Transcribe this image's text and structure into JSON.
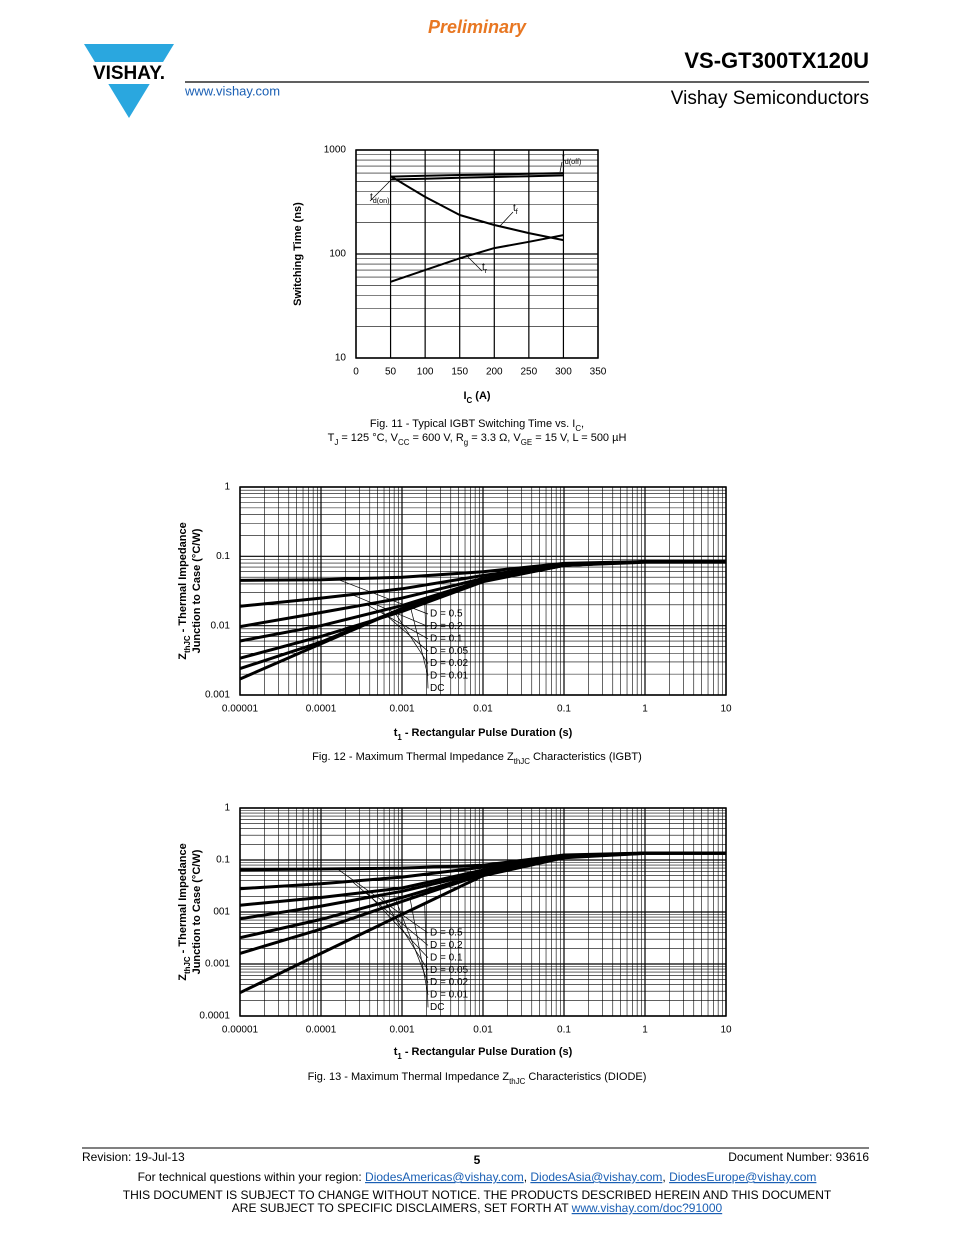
{
  "header": {
    "preliminary": "Preliminary",
    "logo": "VISHAY.",
    "title": "VS-GT300TX120U",
    "company": "Vishay Semiconductors",
    "url": "www.vishay.com"
  },
  "chart_data": [
    {
      "type": "line",
      "x_label": [
        "I",
        "C",
        " (A)"
      ],
      "y_label": [
        [
          "Switching Time (ns)"
        ]
      ],
      "caption": [
        [
          "Fig. 11 - Typical IGBT Switching Time vs. I",
          "C",
          ","
        ],
        [
          "T",
          "J",
          " = 125 °C, V",
          "CC",
          " = 600 V, R",
          "g",
          " = 3.3 Ω, V",
          "GE",
          " = 15 V, L = 500 µH"
        ]
      ],
      "x": [
        50,
        100,
        150,
        200,
        250,
        300
      ],
      "xlim": [
        0,
        350
      ],
      "xticks": [
        0,
        50,
        100,
        150,
        200,
        250,
        300,
        350
      ],
      "xscale": "linear",
      "ylim": [
        10,
        1000
      ],
      "yticks": [
        10,
        100,
        1000
      ],
      "yscale": "log",
      "grid": true,
      "series": [
        {
          "name": [
            "t",
            "d(off)"
          ],
          "color": "#000000",
          "values": [
            555,
            565,
            575,
            580,
            590,
            600
          ]
        },
        {
          "name": [
            "t",
            "d(on)"
          ],
          "color": "#000000",
          "values": [
            520,
            530,
            540,
            550,
            560,
            570
          ]
        },
        {
          "name": [
            "t",
            "f"
          ],
          "color": "#000000",
          "values": [
            560,
            354,
            237,
            190,
            159,
            136
          ]
        },
        {
          "name": [
            "t",
            "r"
          ],
          "color": "#000000",
          "values": [
            54,
            70,
            91,
            114,
            131,
            152
          ]
        }
      ]
    },
    {
      "type": "line",
      "x_label": [
        "t",
        "1",
        " - Rectangular Pulse Duration (s)"
      ],
      "y_label": [
        [
          "Z",
          "thJC",
          " - Thermal Impedance"
        ],
        [
          "Junction to Case (°C/W)"
        ]
      ],
      "caption": [
        [
          "Fig. 12 - Maximum Thermal Impedance Z",
          "thJC",
          " Characteristics (IGBT)"
        ]
      ],
      "x": [
        1e-05,
        0.0001,
        0.001,
        0.01,
        0.1,
        1,
        10
      ],
      "xlim": [
        1e-05,
        10
      ],
      "xticks": [
        {
          "value": 1e-05,
          "label": "0.00001"
        },
        0.0001,
        0.001,
        0.01,
        0.1,
        1,
        10
      ],
      "xscale": "log",
      "ylim": [
        0.001,
        1
      ],
      "yticks": [
        0.001,
        0.01,
        0.1,
        1
      ],
      "yscale": "log",
      "grid": true,
      "series": [
        {
          "name": "D = 0.5",
          "color": "#000000",
          "values": [
            0.045,
            0.046,
            0.05,
            0.06,
            0.079,
            0.084,
            0.084
          ]
        },
        {
          "name": "D = 0.2",
          "color": "#000000",
          "values": [
            0.019,
            0.025,
            0.034,
            0.053,
            0.077,
            0.084,
            0.084
          ]
        },
        {
          "name": "D = 0.1",
          "color": "#000000",
          "values": [
            0.0097,
            0.0155,
            0.025,
            0.048,
            0.074,
            0.084,
            0.084
          ]
        },
        {
          "name": "D = 0.05",
          "color": "#000000",
          "values": [
            0.006,
            0.01,
            0.0195,
            0.045,
            0.074,
            0.084,
            0.084
          ]
        },
        {
          "name": "D = 0.02",
          "color": "#000000",
          "values": [
            0.0034,
            0.007,
            0.016,
            0.043,
            0.074,
            0.084,
            0.084
          ]
        },
        {
          "name": "D = 0.01",
          "color": "#000000",
          "values": [
            0.0024,
            0.0058,
            0.0177,
            0.044,
            0.074,
            0.084,
            0.084
          ]
        },
        {
          "name": "DC",
          "color": "#000000",
          "values": [
            0.0017,
            0.0055,
            0.0175,
            0.045,
            0.074,
            0.082,
            0.082
          ]
        }
      ]
    },
    {
      "type": "line",
      "x_label": [
        "t",
        "1",
        " - Rectangular Pulse Duration (s)"
      ],
      "y_label": [
        [
          "Z",
          "thJC",
          " - Thermal Impedance"
        ],
        [
          "Junction to Case (°C/W)"
        ]
      ],
      "caption": [
        [
          "Fig. 13 - Maximum Thermal Impedance Z",
          "thJC",
          " Characteristics (DIODE)"
        ]
      ],
      "x": [
        1e-05,
        0.0001,
        0.001,
        0.01,
        0.1,
        1,
        10
      ],
      "xlim": [
        1e-05,
        10
      ],
      "xticks": [
        {
          "value": 1e-05,
          "label": "0.00001"
        },
        0.0001,
        0.001,
        0.01,
        0.1,
        1,
        10
      ],
      "xscale": "log",
      "ylim": [
        0.0001,
        1
      ],
      "yticks": [
        0.0001,
        0.001,
        {
          "value": 0.01,
          "label": "001"
        },
        0.1,
        1
      ],
      "yscale": "log",
      "grid": true,
      "series": [
        {
          "name": "D = 0.5",
          "color": "#000000",
          "values": [
            0.065,
            0.067,
            0.07,
            0.079,
            0.125,
            0.136,
            0.136
          ]
        },
        {
          "name": "D = 0.2",
          "color": "#000000",
          "values": [
            0.028,
            0.035,
            0.047,
            0.073,
            0.12,
            0.136,
            0.136
          ]
        },
        {
          "name": "D = 0.1",
          "color": "#000000",
          "values": [
            0.0135,
            0.019,
            0.029,
            0.064,
            0.118,
            0.136,
            0.136
          ]
        },
        {
          "name": "D = 0.05",
          "color": "#000000",
          "values": [
            0.0074,
            0.013,
            0.025,
            0.058,
            0.115,
            0.136,
            0.136
          ]
        },
        {
          "name": "D = 0.02",
          "color": "#000000",
          "values": [
            0.0032,
            0.0072,
            0.019,
            0.055,
            0.113,
            0.136,
            0.136
          ]
        },
        {
          "name": "D = 0.01",
          "color": "#000000",
          "values": [
            0.0016,
            0.0047,
            0.016,
            0.053,
            0.112,
            0.136,
            0.136
          ]
        },
        {
          "name": "DC",
          "color": "#000000",
          "values": [
            0.00028,
            0.0016,
            0.009,
            0.05,
            0.11,
            0.134,
            0.134
          ]
        }
      ]
    }
  ],
  "footer": {
    "revision": "Revision: 19-Jul-13",
    "page": "5",
    "document": "Document Number: 93616",
    "contact": [
      "For technical questions within your region: ",
      "DiodesAmericas@vishay.com",
      ", ",
      "DiodesAsia@vishay.com",
      ", ",
      "DiodesEurope@vishay.com"
    ],
    "disclaimer": [
      [
        "THIS DOCUMENT IS SUBJECT TO CHANGE WITHOUT NOTICE. THE PRODUCTS DESCRIBED HEREIN AND THIS DOCUMENT"
      ],
      [
        "ARE SUBJECT TO SPECIFIC DISCLAIMERS, SET FORTH AT ",
        "www.vishay.com/doc?91000"
      ]
    ]
  }
}
